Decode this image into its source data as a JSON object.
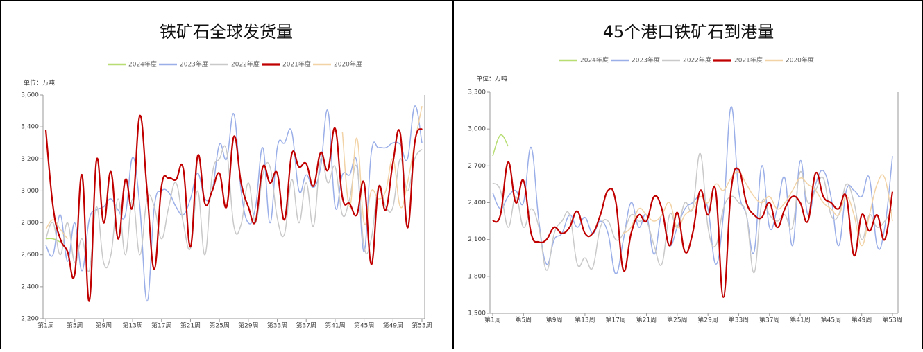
{
  "chart_data": [
    {
      "type": "line",
      "title": "铁矿石全球发货量",
      "unit": "单位：万吨",
      "categories": [
        "第1周",
        null,
        null,
        null,
        "第5周",
        null,
        null,
        null,
        "第9周",
        null,
        null,
        null,
        "第13周",
        null,
        null,
        null,
        "第17周",
        null,
        null,
        null,
        "第21周",
        null,
        null,
        null,
        "第25周",
        null,
        null,
        null,
        "第29周",
        null,
        null,
        null,
        "第33周",
        null,
        null,
        null,
        "第37周",
        null,
        null,
        null,
        "第41周",
        null,
        null,
        null,
        "第45周",
        null,
        null,
        null,
        "第49周",
        null,
        null,
        null,
        "第53周"
      ],
      "ylim": [
        2200,
        3600
      ],
      "yticks": [
        {
          "value": 2200,
          "label": "2,200"
        },
        {
          "value": 2400,
          "label": "2,400"
        },
        {
          "value": 2600,
          "label": "2,600"
        },
        {
          "value": 2800,
          "label": "2,800"
        },
        {
          "value": 3000,
          "label": "3,000"
        },
        {
          "value": 3200,
          "label": "3,200"
        },
        {
          "value": 3400,
          "label": "3,400"
        },
        {
          "value": 3600,
          "label": "3,600"
        }
      ],
      "series": [
        {
          "name": "2024年度",
          "color": "#b7dd73",
          "width": 1.5,
          "values": [
            2700,
            2700,
            2680,
            null,
            null,
            null,
            null,
            null,
            null,
            null,
            null,
            null,
            null,
            null,
            null,
            null,
            null,
            null,
            null,
            null,
            null,
            null,
            null,
            null,
            null,
            null,
            null,
            null,
            null,
            null,
            null,
            null,
            null,
            null,
            null,
            null,
            null,
            null,
            null,
            null,
            null,
            null,
            null,
            null,
            null,
            null,
            null,
            null,
            null,
            null,
            null,
            null,
            null
          ]
        },
        {
          "name": "2023年度",
          "color": "#9aaee8",
          "width": 1.5,
          "values": [
            2660,
            2600,
            2850,
            2560,
            2800,
            2500,
            2820,
            2880,
            2900,
            2950,
            2880,
            2850,
            3210,
            2900,
            2310,
            2900,
            3000,
            2990,
            2900,
            2850,
            2950,
            3110,
            2950,
            3000,
            3290,
            3200,
            3480,
            3000,
            2800,
            2900,
            3270,
            2800,
            3270,
            3300,
            3370,
            3000,
            3100,
            3020,
            3150,
            3500,
            2900,
            3100,
            3100,
            3180,
            2620,
            3240,
            3270,
            3270,
            3300,
            3290,
            3200,
            3530,
            3300
          ]
        },
        {
          "name": "2022年度",
          "color": "#c9c9c9",
          "width": 1.5,
          "values": [
            2700,
            2800,
            2600,
            2800,
            2550,
            2700,
            2500,
            2900,
            2550,
            2600,
            2950,
            2600,
            2950,
            2600,
            2950,
            2900,
            2700,
            2900,
            3050,
            2800,
            2640,
            3000,
            2600,
            3100,
            3200,
            3250,
            2780,
            2790,
            3050,
            2800,
            3100,
            3150,
            2830,
            2730,
            3070,
            2800,
            3050,
            2780,
            3200,
            3050,
            3150,
            2850,
            2950,
            3150,
            2650,
            2700,
            3030,
            2900,
            2900,
            3200,
            3000,
            3200,
            3260
          ]
        },
        {
          "name": "2021年度",
          "color": "#c00000",
          "width": 2.2,
          "values": [
            3380,
            2900,
            2700,
            2620,
            2480,
            3100,
            2310,
            3190,
            2800,
            3120,
            2700,
            3070,
            2900,
            3470,
            3000,
            2510,
            3030,
            3080,
            3070,
            3140,
            2650,
            3220,
            2920,
            3000,
            3110,
            2900,
            3340,
            3050,
            2900,
            2810,
            3150,
            3050,
            3110,
            2820,
            3230,
            3150,
            3170,
            3030,
            3240,
            3130,
            3390,
            2960,
            2920,
            2850,
            3050,
            2540,
            3020,
            2880,
            3180,
            3360,
            2770,
            3300,
            3390
          ]
        },
        {
          "name": "2020年度",
          "color": "#f2d3a6",
          "width": 1.5,
          "values": [
            2760,
            2820,
            2760,
            2700,
            null,
            null,
            null,
            null,
            null,
            null,
            null,
            null,
            null,
            null,
            null,
            null,
            null,
            null,
            null,
            null,
            null,
            null,
            null,
            null,
            null,
            null,
            null,
            null,
            null,
            null,
            null,
            null,
            null,
            null,
            null,
            null,
            null,
            null,
            null,
            null,
            null,
            3370,
            2900,
            3330,
            2800,
            3000,
            2950,
            3000,
            3200,
            2900,
            3050,
            3300,
            3530
          ]
        }
      ]
    },
    {
      "type": "line",
      "title": "45个港口铁矿石到港量",
      "unit": "单位：万吨",
      "categories": [
        "第1周",
        null,
        null,
        null,
        "第5周",
        null,
        null,
        null,
        "第9周",
        null,
        null,
        null,
        "第13周",
        null,
        null,
        null,
        "第17周",
        null,
        null,
        null,
        "第21周",
        null,
        null,
        null,
        "第25周",
        null,
        null,
        null,
        "第29周",
        null,
        null,
        null,
        "第33周",
        null,
        null,
        null,
        "第37周",
        null,
        null,
        null,
        "第41周",
        null,
        null,
        null,
        "第45周",
        null,
        null,
        null,
        "第49周",
        null,
        null,
        null,
        "第53周"
      ],
      "ylim": [
        1500,
        3300
      ],
      "yticks": [
        {
          "value": 1500,
          "label": "1,500"
        },
        {
          "value": 1800,
          "label": "1,800"
        },
        {
          "value": 2100,
          "label": "2,100"
        },
        {
          "value": 2400,
          "label": "2,400"
        },
        {
          "value": 2700,
          "label": "2,700"
        },
        {
          "value": 3000,
          "label": "3,000"
        },
        {
          "value": 3300,
          "label": "3,300"
        }
      ],
      "series": [
        {
          "name": "2024年度",
          "color": "#b7dd73",
          "width": 1.5,
          "values": [
            2780,
            2950,
            2860,
            null,
            null,
            null,
            null,
            null,
            null,
            null,
            null,
            null,
            null,
            null,
            null,
            null,
            null,
            null,
            null,
            null,
            null,
            null,
            null,
            null,
            null,
            null,
            null,
            null,
            null,
            null,
            null,
            null,
            null,
            null,
            null,
            null,
            null,
            null,
            null,
            null,
            null,
            null,
            null,
            null,
            null,
            null,
            null,
            null,
            null,
            null,
            null,
            null,
            null
          ]
        },
        {
          "name": "2023年度",
          "color": "#9aaee8",
          "width": 1.5,
          "values": [
            2480,
            2350,
            2450,
            2500,
            2400,
            2850,
            2250,
            1900,
            2100,
            2150,
            2300,
            2200,
            2280,
            2150,
            2250,
            2150,
            1820,
            2100,
            2400,
            2200,
            2300,
            1980,
            2300,
            2050,
            2200,
            2350,
            2400,
            2450,
            2350,
            1900,
            2300,
            3180,
            2500,
            2300,
            2000,
            2700,
            2200,
            2350,
            2600,
            2050,
            2740,
            2300,
            2550,
            2660,
            2450,
            2050,
            2500,
            2500,
            2450,
            2600,
            2050,
            2200,
            2780
          ]
        },
        {
          "name": "2022年度",
          "color": "#c9c9c9",
          "width": 1.5,
          "values": [
            2560,
            2500,
            2200,
            2450,
            2200,
            2350,
            2200,
            1850,
            2150,
            2250,
            2300,
            1900,
            1950,
            1870,
            2200,
            2250,
            2100,
            2150,
            2300,
            2250,
            2250,
            2050,
            1900,
            2300,
            2200,
            2400,
            2350,
            2800,
            2200,
            2050,
            2350,
            2450,
            2400,
            2300,
            1830,
            2400,
            2300,
            2250,
            2300,
            2200,
            2650,
            2400,
            2500,
            2600,
            2300,
            2300,
            2550,
            2400,
            2100,
            2300,
            2200,
            2250,
            2350
          ]
        },
        {
          "name": "2021年度",
          "color": "#c00000",
          "width": 2.2,
          "values": [
            2250,
            2300,
            2730,
            2400,
            2580,
            2150,
            2080,
            2100,
            2200,
            2150,
            2200,
            2330,
            2150,
            2150,
            2300,
            2500,
            2410,
            1850,
            2150,
            2300,
            2250,
            2450,
            2350,
            2050,
            2320,
            2000,
            2150,
            2500,
            2300,
            2500,
            1630,
            2500,
            2670,
            2400,
            2300,
            2280,
            2400,
            2200,
            2350,
            2450,
            2400,
            2250,
            2640,
            2450,
            2400,
            2350,
            2450,
            1970,
            2300,
            2170,
            2300,
            2100,
            2490
          ]
        },
        {
          "name": "2020年度",
          "color": "#f2d3a6",
          "width": 1.5,
          "values": [
            null,
            null,
            null,
            null,
            null,
            null,
            null,
            null,
            null,
            null,
            null,
            null,
            null,
            null,
            null,
            null,
            null,
            2150,
            2200,
            2350,
            2300,
            2250,
            2300,
            2400,
            2200,
            2300,
            2350,
            2450,
            2400,
            2550,
            2500,
            2600,
            2650,
            2550,
            2450,
            2400,
            2450,
            2350,
            2400,
            2500,
            2600,
            2550,
            2500,
            2400,
            2350,
            2300,
            2450,
            2300,
            2050,
            2300,
            2550,
            2600,
            2250
          ]
        }
      ]
    }
  ]
}
